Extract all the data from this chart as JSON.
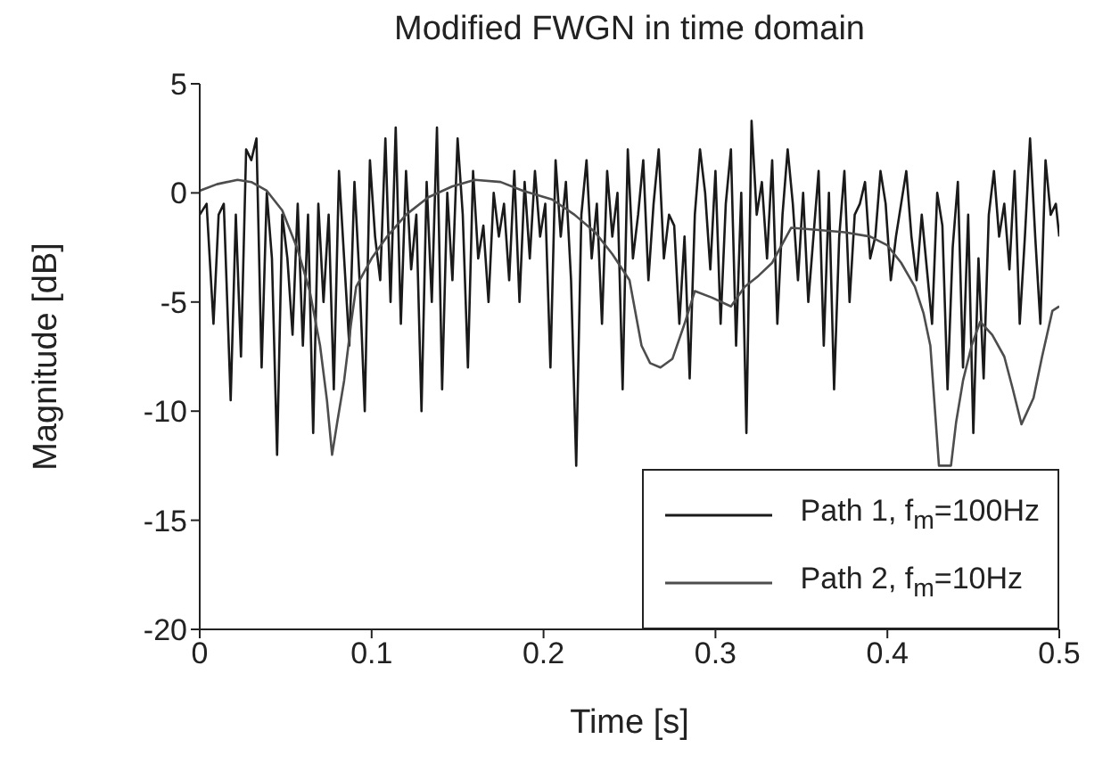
{
  "chart_data": {
    "type": "line",
    "title": "Modified FWGN in time domain",
    "xlabel": "Time [s]",
    "ylabel": "Magnitude [dB]",
    "xlim": [
      0,
      0.5
    ],
    "xticks": [
      0,
      0.1,
      0.2,
      0.3,
      0.4,
      0.5
    ],
    "ylim": [
      -20,
      5
    ],
    "yticks": [
      5,
      0,
      -5,
      -10,
      -15,
      -20
    ],
    "legend": "bottom right",
    "series": [
      {
        "name": "Path 1, f$_{m}$=100Hz",
        "color": "#1a1a1a",
        "x": [
          0,
          0.004,
          0.008,
          0.011,
          0.014,
          0.018,
          0.021,
          0.024,
          0.027,
          0.03,
          0.033,
          0.036,
          0.039,
          0.042,
          0.045,
          0.048,
          0.051,
          0.054,
          0.057,
          0.06,
          0.063,
          0.066,
          0.069,
          0.072,
          0.075,
          0.078,
          0.081,
          0.084,
          0.087,
          0.09,
          0.093,
          0.096,
          0.099,
          0.102,
          0.105,
          0.108,
          0.111,
          0.114,
          0.117,
          0.12,
          0.123,
          0.126,
          0.129,
          0.132,
          0.135,
          0.138,
          0.141,
          0.144,
          0.147,
          0.15,
          0.153,
          0.156,
          0.159,
          0.162,
          0.165,
          0.168,
          0.171,
          0.174,
          0.177,
          0.18,
          0.183,
          0.186,
          0.189,
          0.192,
          0.195,
          0.198,
          0.201,
          0.204,
          0.207,
          0.21,
          0.213,
          0.216,
          0.219,
          0.222,
          0.225,
          0.228,
          0.231,
          0.234,
          0.237,
          0.24,
          0.243,
          0.246,
          0.249,
          0.252,
          0.255,
          0.258,
          0.261,
          0.264,
          0.267,
          0.27,
          0.273,
          0.276,
          0.279,
          0.282,
          0.285,
          0.288,
          0.291,
          0.294,
          0.297,
          0.3,
          0.303,
          0.306,
          0.309,
          0.312,
          0.315,
          0.318,
          0.321,
          0.324,
          0.327,
          0.33,
          0.333,
          0.336,
          0.339,
          0.342,
          0.345,
          0.348,
          0.351,
          0.354,
          0.357,
          0.36,
          0.363,
          0.366,
          0.369,
          0.372,
          0.375,
          0.378,
          0.381,
          0.384,
          0.387,
          0.39,
          0.393,
          0.396,
          0.399,
          0.402,
          0.405,
          0.408,
          0.411,
          0.414,
          0.417,
          0.42,
          0.423,
          0.426,
          0.429,
          0.432,
          0.435,
          0.438,
          0.441,
          0.444,
          0.447,
          0.45,
          0.453,
          0.456,
          0.459,
          0.462,
          0.465,
          0.468,
          0.471,
          0.474,
          0.477,
          0.48,
          0.483,
          0.486,
          0.489,
          0.492,
          0.495,
          0.498,
          0.5
        ],
        "values": [
          -1,
          -0.5,
          -6,
          -1,
          -0.5,
          -9.5,
          -1,
          -7.5,
          2,
          1.5,
          2.5,
          -8,
          0,
          -3,
          -12,
          -1,
          -3,
          -6.5,
          -0.5,
          -7,
          -1,
          -11,
          -0.5,
          -5,
          -1,
          -9,
          1,
          -3,
          -7,
          0.5,
          -4,
          -10,
          1.5,
          -2,
          -4,
          2.5,
          -5,
          3,
          -6,
          1,
          -3.5,
          -1,
          -10,
          0.5,
          -5,
          3,
          -9,
          0,
          -4,
          2.5,
          -1,
          -8,
          1,
          -3,
          -1.5,
          -5,
          0,
          -2,
          -0.5,
          -4,
          1,
          -5,
          0.5,
          -3,
          1,
          -2,
          -0.5,
          -8,
          1.5,
          -2,
          0.5,
          -4,
          -12.5,
          -1,
          1.5,
          -3,
          -0.5,
          -6,
          1,
          -2,
          0,
          -9,
          2,
          -3,
          -1,
          1.5,
          -4,
          -0.5,
          2,
          -3,
          -1,
          -1.5,
          -6,
          -2,
          -8.5,
          -1,
          2,
          0,
          -3.5,
          1,
          -6,
          -0.5,
          2,
          -7,
          0,
          -11,
          3.3,
          -1,
          0.5,
          -3,
          1.5,
          -6,
          -1,
          2,
          -0.5,
          -4,
          0,
          -5,
          -2,
          1,
          -7,
          0,
          -9,
          -2,
          1,
          -5,
          -1,
          -0.5,
          0.5,
          -3,
          -2,
          1,
          -0.5,
          -4,
          -2,
          -0.5,
          1,
          -2,
          -4,
          -1,
          -3.5,
          -6,
          0,
          -1.5,
          -9,
          -2.5,
          0.5,
          -8,
          -1,
          -11,
          -3,
          -8.5,
          -1,
          1,
          -2,
          -0.5,
          -3.5,
          1,
          -6,
          -2,
          2.5,
          -2,
          -6,
          1.5,
          -1,
          -0.5,
          -2
        ]
      },
      {
        "name": "Path 2, f$_{m}$=10Hz",
        "color": "#4d4d4d",
        "x": [
          0,
          0.01,
          0.022,
          0.03,
          0.039,
          0.048,
          0.057,
          0.064,
          0.07,
          0.074,
          0.077,
          0.08,
          0.084,
          0.088,
          0.091,
          0.1,
          0.109,
          0.12,
          0.133,
          0.147,
          0.16,
          0.175,
          0.188,
          0.205,
          0.218,
          0.23,
          0.24,
          0.25,
          0.257,
          0.262,
          0.268,
          0.275,
          0.282,
          0.288,
          0.298,
          0.309,
          0.317,
          0.325,
          0.333,
          0.344,
          0.36,
          0.375,
          0.39,
          0.4,
          0.408,
          0.416,
          0.421,
          0.425,
          0.43,
          0.437,
          0.44,
          0.444,
          0.449,
          0.454,
          0.461,
          0.468,
          0.473,
          0.478,
          0.485,
          0.49,
          0.496,
          0.5
        ],
        "values": [
          0.1,
          0.4,
          0.6,
          0.5,
          0.1,
          -0.8,
          -2.6,
          -4.5,
          -7,
          -9.5,
          -12,
          -10.5,
          -8.6,
          -6,
          -4.3,
          -3,
          -2,
          -1,
          -0.2,
          0.3,
          0.6,
          0.5,
          0.1,
          -0.3,
          -1,
          -1.8,
          -2.8,
          -4,
          -7,
          -7.8,
          -8,
          -7.6,
          -6,
          -4.5,
          -4.8,
          -5.2,
          -4.3,
          -3.8,
          -3.2,
          -1.6,
          -1.7,
          -1.8,
          -2,
          -2.4,
          -3.2,
          -4.3,
          -5.5,
          -7,
          -12.5,
          -12.5,
          -10.5,
          -8.6,
          -7,
          -5.9,
          -6.5,
          -7.5,
          -9,
          -10.6,
          -9.4,
          -7.5,
          -5.4,
          -5.2
        ]
      }
    ]
  }
}
